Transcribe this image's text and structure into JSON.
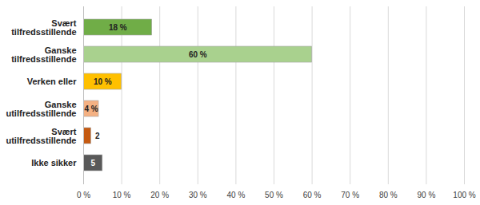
{
  "chart_data": {
    "type": "bar",
    "orientation": "horizontal",
    "categories": [
      "Svært tilfredsstillende",
      "Ganske tilfredsstillende",
      "Verken eller",
      "Ganske utilfredsstillende",
      "Svært utilfredsstillende",
      "Ikke sikker"
    ],
    "values": [
      18,
      60,
      10,
      4,
      2,
      5
    ],
    "value_labels": [
      "18 %",
      "60 %",
      "10 %",
      "4 %",
      "2",
      "5"
    ],
    "colors": [
      "#70ad47",
      "#a9d18e",
      "#ffc000",
      "#f4b183",
      "#c55a11",
      "#595959"
    ],
    "xlim": [
      0,
      100
    ],
    "xticks": [
      {
        "value": 0,
        "label": "0 %"
      },
      {
        "value": 10,
        "label": "10 %"
      },
      {
        "value": 20,
        "label": "20 %"
      },
      {
        "value": 30,
        "label": "30 %"
      },
      {
        "value": 40,
        "label": "40 %"
      },
      {
        "value": 50,
        "label": "50 %"
      },
      {
        "value": 60,
        "label": "60 %"
      },
      {
        "value": 70,
        "label": "70 %"
      },
      {
        "value": 80,
        "label": "80 %"
      },
      {
        "value": 90,
        "label": "90 %"
      },
      {
        "value": 100,
        "label": "100 %"
      }
    ],
    "grid": true,
    "data_labels": true
  }
}
